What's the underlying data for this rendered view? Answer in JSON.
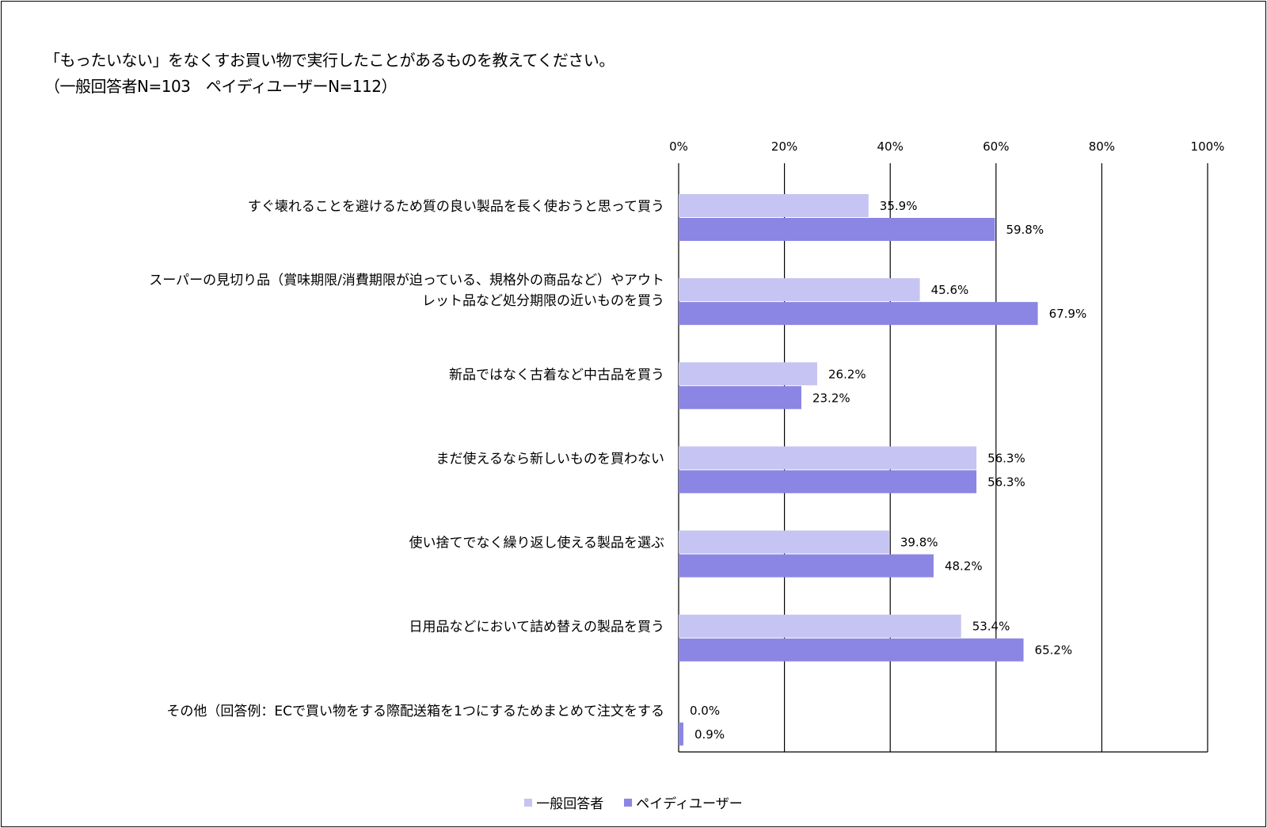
{
  "chart_data": {
    "type": "bar",
    "orientation": "horizontal",
    "title": "「もったいない」をなくすお買い物で実行したことがあるものを教えてください。",
    "subtitle": "（一般回答者N=103　ペイディユーザーN=112）",
    "categories": [
      [
        "すぐ壊れることを避けるため質の良い製品を長く使おうと思って買う"
      ],
      [
        "スーパーの見切り品（賞味期限/消費期限が迫っている、規格外の商品など）やアウト",
        "レット品など処分期限の近いものを買う"
      ],
      [
        "新品ではなく古着など中古品を買う"
      ],
      [
        "まだ使えるなら新しいものを買わない"
      ],
      [
        "使い捨てでなく繰り返し使える製品を選ぶ"
      ],
      [
        "日用品などにおいて詰め替えの製品を買う"
      ],
      [
        "その他（回答例：ECで買い物をする際配送箱を1つにするためまとめて注文をする"
      ]
    ],
    "series": [
      {
        "name": "一般回答者",
        "color": "#c5c4f2",
        "values": [
          35.9,
          45.6,
          26.2,
          56.3,
          39.8,
          53.4,
          0.0
        ],
        "labels": [
          "35.9%",
          "45.6%",
          "26.2%",
          "56.3%",
          "39.8%",
          "53.4%",
          "0.0%"
        ]
      },
      {
        "name": "ペイディユーザー",
        "color": "#8b86e4",
        "values": [
          59.8,
          67.9,
          23.2,
          56.3,
          48.2,
          65.2,
          0.9
        ],
        "labels": [
          "59.8%",
          "67.9%",
          "23.2%",
          "56.3%",
          "48.2%",
          "65.2%",
          "0.9%"
        ]
      }
    ],
    "xlim": [
      0,
      100
    ],
    "xticks": [
      0,
      20,
      40,
      60,
      80,
      100
    ],
    "xtick_labels": [
      "0%",
      "20%",
      "40%",
      "60%",
      "80%",
      "100%"
    ],
    "xaxis_position": "top",
    "grid": true,
    "legend": "bottom"
  }
}
